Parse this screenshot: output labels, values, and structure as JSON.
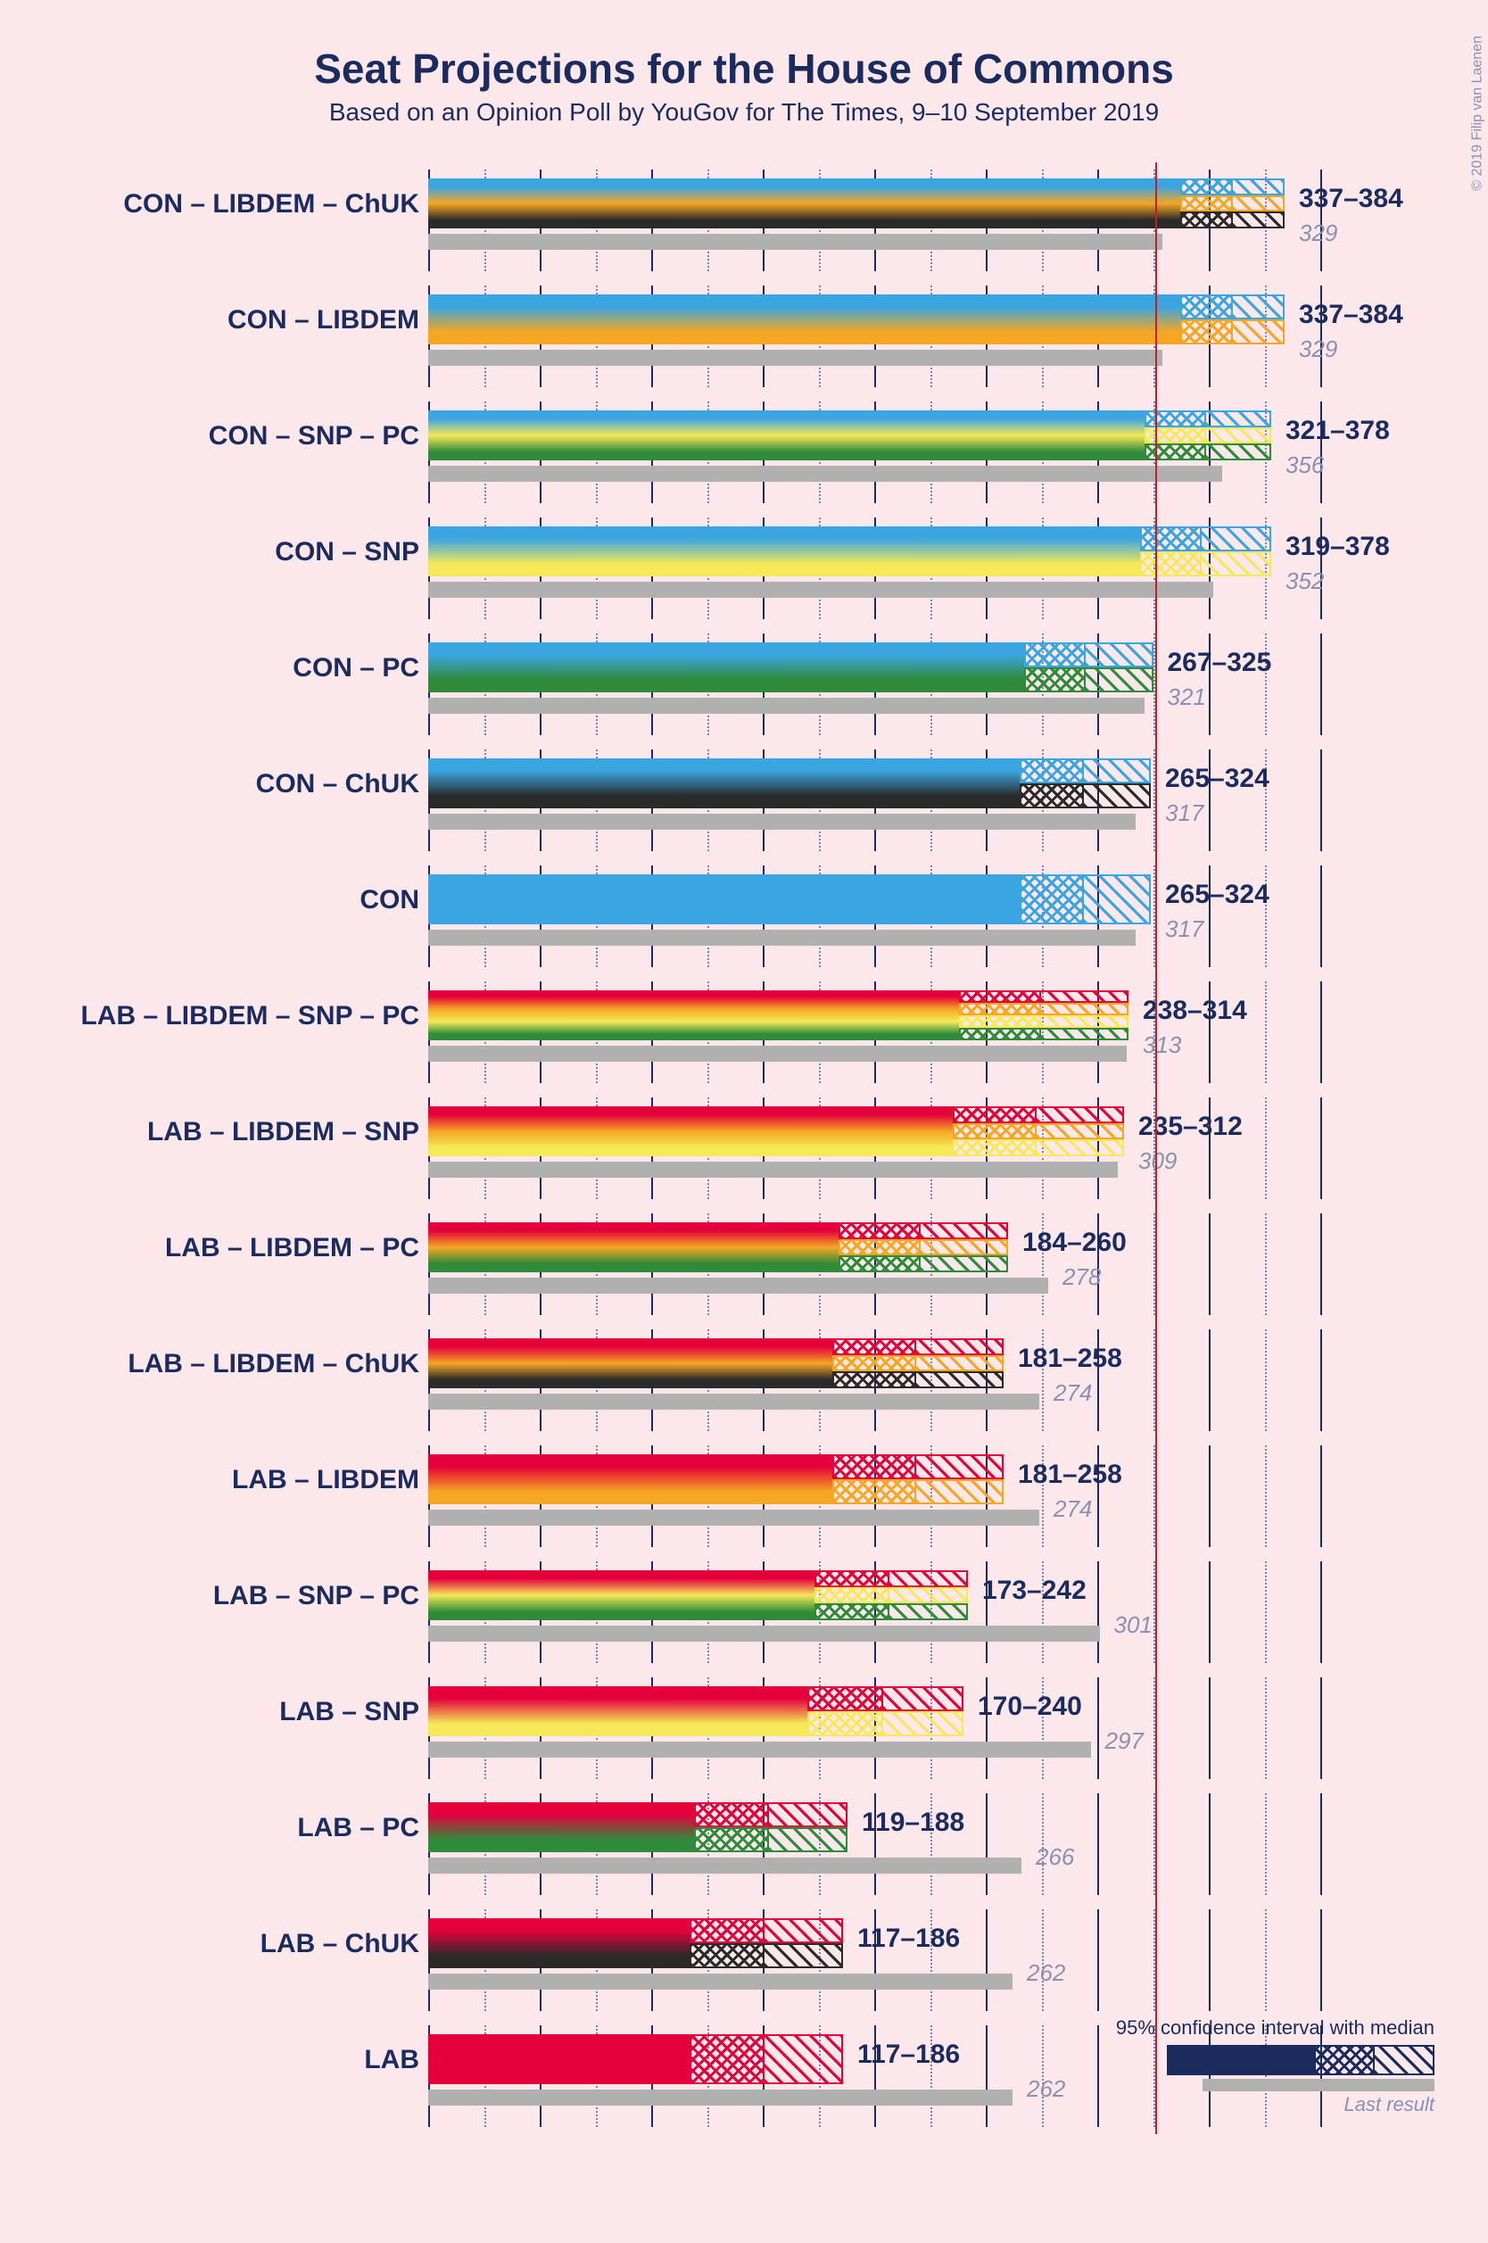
{
  "title": "Seat Projections for the House of Commons",
  "subtitle": "Based on an Opinion Poll by YouGov for The Times, 9–10 September 2019",
  "copyright": "© 2019 Filip van Laenen",
  "chart": {
    "type": "bar",
    "x_max": 400,
    "grid_step": 50,
    "dash_step": 25,
    "majority": 326,
    "background_color": "#fce8ea",
    "grid_color": "#1b2b5e",
    "dash_color": "#7a82b0",
    "majority_color": "#c02020",
    "last_bar_color": "#b0b0b0",
    "title_color": "#1b2b5e",
    "title_fontsize": 46,
    "subtitle_fontsize": 28,
    "label_fontsize": 30,
    "range_fontsize": 30,
    "last_fontsize": 26,
    "last_text_color": "#8b90b0",
    "party_colors": {
      "CON": "#3aa5e0",
      "LAB": "#e4003b",
      "LIBDEM": "#f5a623",
      "SNP": "#f5e959",
      "PC": "#2f8b3a",
      "ChUK": "#2a2a2a"
    }
  },
  "rows": [
    {
      "label": "CON – LIBDEM – ChUK",
      "parties": [
        "CON",
        "LIBDEM",
        "ChUK"
      ],
      "low": 337,
      "median": 360,
      "high": 384,
      "last": 329,
      "range": "337–384"
    },
    {
      "label": "CON – LIBDEM",
      "parties": [
        "CON",
        "LIBDEM"
      ],
      "low": 337,
      "median": 360,
      "high": 384,
      "last": 329,
      "range": "337–384"
    },
    {
      "label": "CON – SNP – PC",
      "parties": [
        "CON",
        "SNP",
        "PC"
      ],
      "low": 321,
      "median": 348,
      "high": 378,
      "last": 356,
      "range": "321–378"
    },
    {
      "label": "CON – SNP",
      "parties": [
        "CON",
        "SNP"
      ],
      "low": 319,
      "median": 346,
      "high": 378,
      "last": 352,
      "range": "319–378"
    },
    {
      "label": "CON – PC",
      "parties": [
        "CON",
        "PC"
      ],
      "low": 267,
      "median": 294,
      "high": 325,
      "last": 321,
      "range": "267–325"
    },
    {
      "label": "CON – ChUK",
      "parties": [
        "CON",
        "ChUK"
      ],
      "low": 265,
      "median": 293,
      "high": 324,
      "last": 317,
      "range": "265–324"
    },
    {
      "label": "CON",
      "parties": [
        "CON"
      ],
      "low": 265,
      "median": 293,
      "high": 324,
      "last": 317,
      "range": "265–324"
    },
    {
      "label": "LAB – LIBDEM – SNP – PC",
      "parties": [
        "LAB",
        "LIBDEM",
        "SNP",
        "PC"
      ],
      "low": 238,
      "median": 274,
      "high": 314,
      "last": 313,
      "range": "238–314"
    },
    {
      "label": "LAB – LIBDEM – SNP",
      "parties": [
        "LAB",
        "LIBDEM",
        "SNP"
      ],
      "low": 235,
      "median": 272,
      "high": 312,
      "last": 309,
      "range": "235–312"
    },
    {
      "label": "LAB – LIBDEM – PC",
      "parties": [
        "LAB",
        "LIBDEM",
        "PC"
      ],
      "low": 184,
      "median": 220,
      "high": 260,
      "last": 278,
      "range": "184–260"
    },
    {
      "label": "LAB – LIBDEM – ChUK",
      "parties": [
        "LAB",
        "LIBDEM",
        "ChUK"
      ],
      "low": 181,
      "median": 218,
      "high": 258,
      "last": 274,
      "range": "181–258"
    },
    {
      "label": "LAB – LIBDEM",
      "parties": [
        "LAB",
        "LIBDEM"
      ],
      "low": 181,
      "median": 218,
      "high": 258,
      "last": 274,
      "range": "181–258"
    },
    {
      "label": "LAB – SNP – PC",
      "parties": [
        "LAB",
        "SNP",
        "PC"
      ],
      "low": 173,
      "median": 206,
      "high": 242,
      "last": 301,
      "range": "173–242"
    },
    {
      "label": "LAB – SNP",
      "parties": [
        "LAB",
        "SNP"
      ],
      "low": 170,
      "median": 203,
      "high": 240,
      "last": 297,
      "range": "170–240"
    },
    {
      "label": "LAB – PC",
      "parties": [
        "LAB",
        "PC"
      ],
      "low": 119,
      "median": 152,
      "high": 188,
      "last": 266,
      "range": "119–188"
    },
    {
      "label": "LAB – ChUK",
      "parties": [
        "LAB",
        "ChUK"
      ],
      "low": 117,
      "median": 150,
      "high": 186,
      "last": 262,
      "range": "117–186"
    },
    {
      "label": "LAB",
      "parties": [
        "LAB"
      ],
      "low": 117,
      "median": 150,
      "high": 186,
      "last": 262,
      "range": "117–186"
    }
  ],
  "legend": {
    "ci_label": "95% confidence interval with median",
    "last_label": "Last result",
    "demo_color": "#1b2b5e"
  }
}
